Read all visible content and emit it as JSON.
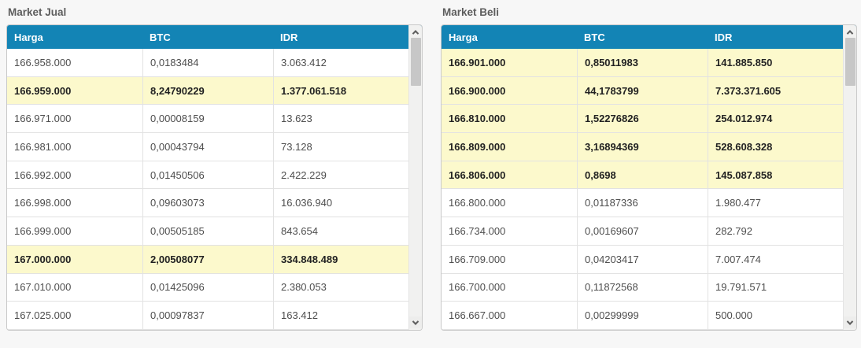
{
  "colors": {
    "page_bg": "#f7f7f7",
    "header_bg": "#1384b5",
    "highlight_row_bg": "#fcf9cc"
  },
  "scrollbar": {
    "up_icon": "chevron-up",
    "down_icon": "chevron-down"
  },
  "tables": [
    {
      "title": "Market Jual",
      "columns": [
        "Harga",
        "BTC",
        "IDR"
      ],
      "rows": [
        {
          "harga": "166.958.000",
          "btc": "0,0183484",
          "idr": "3.063.412",
          "highlight": false
        },
        {
          "harga": "166.959.000",
          "btc": "8,24790229",
          "idr": "1.377.061.518",
          "highlight": true
        },
        {
          "harga": "166.971.000",
          "btc": "0,00008159",
          "idr": "13.623",
          "highlight": false
        },
        {
          "harga": "166.981.000",
          "btc": "0,00043794",
          "idr": "73.128",
          "highlight": false
        },
        {
          "harga": "166.992.000",
          "btc": "0,01450506",
          "idr": "2.422.229",
          "highlight": false
        },
        {
          "harga": "166.998.000",
          "btc": "0,09603073",
          "idr": "16.036.940",
          "highlight": false
        },
        {
          "harga": "166.999.000",
          "btc": "0,00505185",
          "idr": "843.654",
          "highlight": false
        },
        {
          "harga": "167.000.000",
          "btc": "2,00508077",
          "idr": "334.848.489",
          "highlight": true
        },
        {
          "harga": "167.010.000",
          "btc": "0,01425096",
          "idr": "2.380.053",
          "highlight": false
        },
        {
          "harga": "167.025.000",
          "btc": "0,00097837",
          "idr": "163.412",
          "highlight": false
        }
      ]
    },
    {
      "title": "Market Beli",
      "columns": [
        "Harga",
        "BTC",
        "IDR"
      ],
      "rows": [
        {
          "harga": "166.901.000",
          "btc": "0,85011983",
          "idr": "141.885.850",
          "highlight": true
        },
        {
          "harga": "166.900.000",
          "btc": "44,1783799",
          "idr": "7.373.371.605",
          "highlight": true
        },
        {
          "harga": "166.810.000",
          "btc": "1,52276826",
          "idr": "254.012.974",
          "highlight": true
        },
        {
          "harga": "166.809.000",
          "btc": "3,16894369",
          "idr": "528.608.328",
          "highlight": true
        },
        {
          "harga": "166.806.000",
          "btc": "0,8698",
          "idr": "145.087.858",
          "highlight": true
        },
        {
          "harga": "166.800.000",
          "btc": "0,01187336",
          "idr": "1.980.477",
          "highlight": false
        },
        {
          "harga": "166.734.000",
          "btc": "0,00169607",
          "idr": "282.792",
          "highlight": false
        },
        {
          "harga": "166.709.000",
          "btc": "0,04203417",
          "idr": "7.007.474",
          "highlight": false
        },
        {
          "harga": "166.700.000",
          "btc": "0,11872568",
          "idr": "19.791.571",
          "highlight": false
        },
        {
          "harga": "166.667.000",
          "btc": "0,00299999",
          "idr": "500.000",
          "highlight": false
        }
      ]
    }
  ]
}
